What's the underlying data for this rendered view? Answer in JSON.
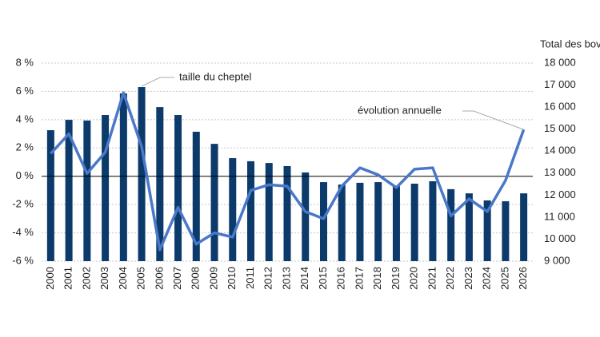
{
  "chart_data": {
    "type": "combo",
    "categories": [
      "2000",
      "2001",
      "2002",
      "2003",
      "2004",
      "2005",
      "2006",
      "2007",
      "2008",
      "2009",
      "2010",
      "2011",
      "2012",
      "2013",
      "2014",
      "2015",
      "2016",
      "2017",
      "2018",
      "2019",
      "2020",
      "2021",
      "2022",
      "2023",
      "2024",
      "2025",
      "2026"
    ],
    "y2_label": "Total des bovins",
    "ylim": [
      -6,
      8
    ],
    "yticks": [
      {
        "value": -6,
        "label": "-6 %"
      },
      {
        "value": -4,
        "label": "-4 %"
      },
      {
        "value": -2,
        "label": "-2 %"
      },
      {
        "value": 0,
        "label": "0 %"
      },
      {
        "value": 2,
        "label": "2 %"
      },
      {
        "value": 4,
        "label": "4 %"
      },
      {
        "value": 6,
        "label": "6 %"
      },
      {
        "value": 8,
        "label": "8 %"
      }
    ],
    "y2lim": [
      9000,
      18000
    ],
    "y2ticks": [
      {
        "value": 9000,
        "label": "9 000"
      },
      {
        "value": 10000,
        "label": "10 000"
      },
      {
        "value": 11000,
        "label": "11 000"
      },
      {
        "value": 12000,
        "label": "12 000"
      },
      {
        "value": 13000,
        "label": "13 000"
      },
      {
        "value": 14000,
        "label": "14 000"
      },
      {
        "value": 15000,
        "label": "15 000"
      },
      {
        "value": 16000,
        "label": "16 000"
      },
      {
        "value": 17000,
        "label": "17 000"
      },
      {
        "value": 18000,
        "label": "18 000"
      }
    ],
    "grid": true,
    "series": [
      {
        "name": "taille du cheptel",
        "type": "bar",
        "axis": "y2",
        "color": "#0b3a6b",
        "values": [
          14950,
          15420,
          15390,
          15640,
          16620,
          16910,
          16000,
          15640,
          14880,
          14330,
          13680,
          13540,
          13460,
          13320,
          13030,
          12590,
          12480,
          12560,
          12590,
          12410,
          12520,
          12630,
          12270,
          12080,
          11760,
          11720,
          12080
        ]
      },
      {
        "name": "évolution annuelle",
        "type": "line",
        "color": "#4a78c8",
        "values": [
          1.6,
          3.0,
          0.2,
          1.7,
          5.9,
          2.1,
          -5.2,
          -2.2,
          -4.8,
          -4.0,
          -4.3,
          -1.0,
          -0.6,
          -0.7,
          -2.5,
          -3.0,
          -0.7,
          0.6,
          0.1,
          -0.8,
          0.5,
          0.6,
          -2.8,
          -1.6,
          -2.5,
          -0.3,
          3.3
        ]
      }
    ]
  }
}
